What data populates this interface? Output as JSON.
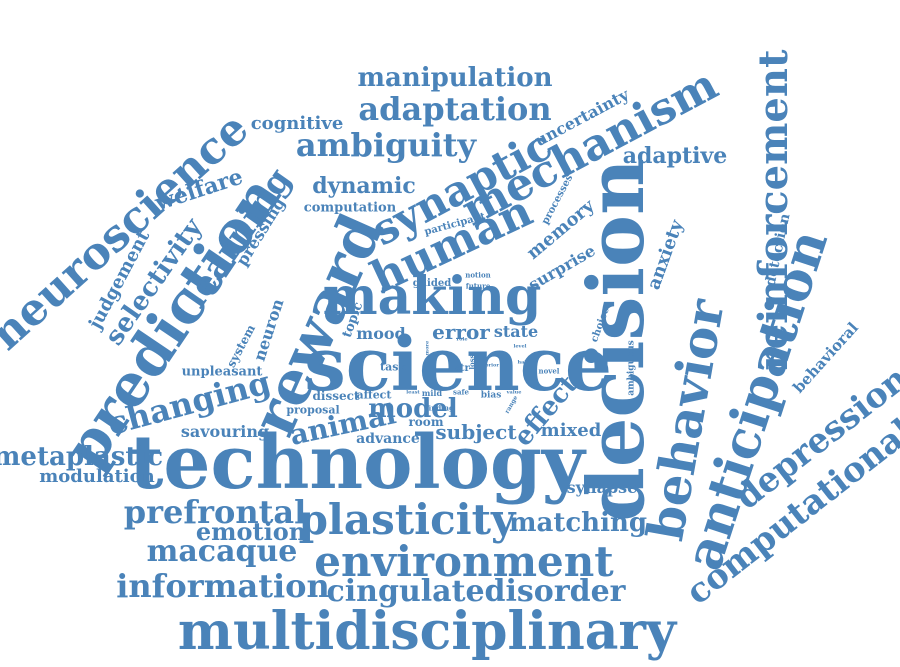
{
  "colors": {
    "word": "#4a83b9",
    "background": "#ffffff"
  },
  "words": {
    "technology": "technology",
    "multidisciplinary": "multidisciplinary",
    "science": "science",
    "decision": "decision",
    "making": "making",
    "prediction": "prediction",
    "reward": "reward",
    "environment": "environment",
    "anticipation": "anticipation",
    "reinforcement": "reinforcement",
    "behavior": "behavior",
    "neuroscience": "neuroscience",
    "plasticity": "plasticity",
    "mechanism": "mechanism",
    "synaptic": "synaptic",
    "human": "human",
    "learning": "learning",
    "computational": "computational",
    "depression": "depression",
    "information": "information",
    "cingulatedisorder": "cingulatedisorder",
    "prefrontal": "prefrontal",
    "macaque": "macaque",
    "emotion": "emotion",
    "matching": "matching",
    "metaplastic": "metaplastic",
    "modulation": "modulation",
    "changing": "changing",
    "savouring": "savouring",
    "animal": "animal",
    "model": "model",
    "subject": "subject",
    "effect": "effect",
    "mixed": "mixed",
    "synapse": "synapse",
    "advance": "advance",
    "room": "room",
    "error": "error",
    "state": "state",
    "mood": "mood",
    "topic": "topic",
    "manipulation": "manipulation",
    "adaptation": "adaptation",
    "ambiguity": "ambiguity",
    "cognitive": "cognitive",
    "uncertainty": "uncertainty",
    "adaptive": "adaptive",
    "dynamic": "dynamic",
    "computation": "computation",
    "welfare": "welfare",
    "selectivity": "selectivity",
    "judgement": "judgement",
    "pressing": "pressing",
    "neuron": "neuron",
    "system": "system",
    "unpleasant": "unpleasant",
    "proposal": "proposal",
    "dissect": "dissect",
    "affect": "affect",
    "task": "task",
    "memory": "memory",
    "surprise": "surprise",
    "anxiety": "anxiety",
    "detection": "detection",
    "behavioral": "behavioral",
    "processes": "processes",
    "participant": "participant",
    "choice": "choice",
    "ambiguous": "ambiguous",
    "guided": "guided",
    "notion": "notion",
    "future": "future",
    "bias": "bias",
    "range": "range",
    "novel": "novel",
    "finding": "finding",
    "mild": "mild",
    "safe": "safe",
    "loss": "loss",
    "str": "str",
    "least": "least",
    "prior": "prior",
    "value": "value",
    "level": "level",
    "half": "half",
    "more": "more",
    "role": "role"
  }
}
